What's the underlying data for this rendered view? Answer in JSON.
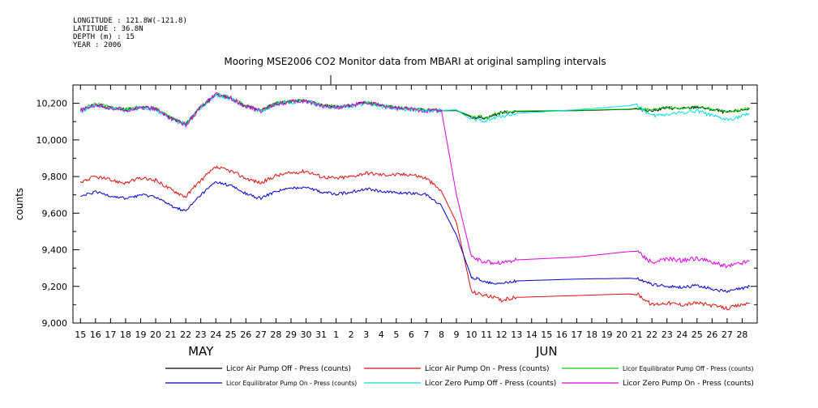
{
  "meta": {
    "longitude": "LONGITUDE : 121.8W(-121.8)",
    "latitude": "LATITUDE : 36.8N",
    "depth": "DEPTH (m) : 15",
    "year": "YEAR : 2006"
  },
  "chart_data": {
    "type": "line",
    "title": "Mooring MSE2006 CO2 Monitor data from MBARI at original sampling intervals",
    "ylabel": "counts",
    "xlabel": "",
    "ylim": [
      9000,
      10300
    ],
    "yticks": [
      9000,
      9200,
      9400,
      9600,
      9800,
      10000,
      10200
    ],
    "xlim": [
      15,
      59.5
    ],
    "x_note": "x values are days counted from May 1 2006 (May 15 = 15, Jun 1 = 32)",
    "x_tick_labels": [
      "15",
      "16",
      "17",
      "18",
      "19",
      "20",
      "21",
      "22",
      "23",
      "24",
      "25",
      "26",
      "27",
      "28",
      "29",
      "30",
      "31",
      "1",
      "2",
      "3",
      "4",
      "5",
      "6",
      "7",
      "8",
      "9",
      "10",
      "11",
      "12",
      "13",
      "14",
      "15",
      "16",
      "17",
      "18",
      "19",
      "20",
      "21",
      "22",
      "23",
      "24",
      "25",
      "26",
      "27",
      "28"
    ],
    "month_labels": [
      {
        "label": "MAY",
        "day": 23
      },
      {
        "label": "JUN",
        "day": 46
      }
    ],
    "grid": false,
    "legend_position": "bottom",
    "series": [
      {
        "name": "Licor Air Pump Off - Press (counts)",
        "color": "#000000",
        "noise": 8,
        "points": [
          [
            15,
            10160
          ],
          [
            16,
            10195
          ],
          [
            17,
            10175
          ],
          [
            18,
            10165
          ],
          [
            19,
            10180
          ],
          [
            20,
            10170
          ],
          [
            21,
            10120
          ],
          [
            22,
            10085
          ],
          [
            23,
            10180
          ],
          [
            24,
            10250
          ],
          [
            25,
            10230
          ],
          [
            26,
            10185
          ],
          [
            27,
            10160
          ],
          [
            28,
            10200
          ],
          [
            29,
            10210
          ],
          [
            30,
            10215
          ],
          [
            31,
            10190
          ],
          [
            32,
            10180
          ],
          [
            33,
            10190
          ],
          [
            34,
            10205
          ],
          [
            35,
            10190
          ],
          [
            36,
            10175
          ],
          [
            37,
            10170
          ],
          [
            38,
            10162
          ],
          [
            39,
            10160
          ],
          [
            40,
            10160
          ],
          [
            41,
            10125
          ],
          [
            42,
            10120
          ],
          [
            43,
            10150
          ],
          [
            44,
            10155
          ],
          [
            48,
            10160
          ],
          [
            52,
            10168
          ],
          [
            53,
            10160
          ],
          [
            54,
            10175
          ],
          [
            55,
            10170
          ],
          [
            56,
            10180
          ],
          [
            57,
            10165
          ],
          [
            58,
            10150
          ],
          [
            59.5,
            10170
          ]
        ]
      },
      {
        "name": "Licor Air Pump On - Press (counts)",
        "color": "#e01010",
        "noise": 10,
        "points": [
          [
            15,
            9770
          ],
          [
            16,
            9800
          ],
          [
            17,
            9780
          ],
          [
            18,
            9765
          ],
          [
            19,
            9790
          ],
          [
            20,
            9780
          ],
          [
            21,
            9730
          ],
          [
            22,
            9690
          ],
          [
            23,
            9780
          ],
          [
            24,
            9850
          ],
          [
            25,
            9830
          ],
          [
            26,
            9790
          ],
          [
            27,
            9765
          ],
          [
            28,
            9805
          ],
          [
            29,
            9820
          ],
          [
            30,
            9830
          ],
          [
            31,
            9800
          ],
          [
            32,
            9790
          ],
          [
            33,
            9800
          ],
          [
            34,
            9820
          ],
          [
            35,
            9810
          ],
          [
            36,
            9810
          ],
          [
            37,
            9812
          ],
          [
            38,
            9790
          ],
          [
            39,
            9720
          ],
          [
            40,
            9550
          ],
          [
            41,
            9170
          ],
          [
            42,
            9150
          ],
          [
            43,
            9125
          ],
          [
            44,
            9140
          ],
          [
            48,
            9150
          ],
          [
            52,
            9160
          ],
          [
            53,
            9100
          ],
          [
            54,
            9110
          ],
          [
            55,
            9100
          ],
          [
            56,
            9110
          ],
          [
            57,
            9095
          ],
          [
            58,
            9080
          ],
          [
            59.5,
            9110
          ]
        ]
      },
      {
        "name": "Licor Equilibrator Pump Off - Press (counts)",
        "color": "#00d000",
        "noise": 8,
        "points": [
          [
            15,
            10165
          ],
          [
            16,
            10198
          ],
          [
            17,
            10178
          ],
          [
            18,
            10168
          ],
          [
            19,
            10182
          ],
          [
            20,
            10172
          ],
          [
            21,
            10122
          ],
          [
            22,
            10088
          ],
          [
            23,
            10182
          ],
          [
            24,
            10252
          ],
          [
            25,
            10232
          ],
          [
            26,
            10188
          ],
          [
            27,
            10162
          ],
          [
            28,
            10202
          ],
          [
            29,
            10212
          ],
          [
            30,
            10217
          ],
          [
            31,
            10192
          ],
          [
            32,
            10182
          ],
          [
            33,
            10192
          ],
          [
            34,
            10207
          ],
          [
            35,
            10192
          ],
          [
            36,
            10177
          ],
          [
            37,
            10172
          ],
          [
            38,
            10164
          ],
          [
            39,
            10162
          ],
          [
            40,
            10162
          ],
          [
            41,
            10130
          ],
          [
            42,
            10125
          ],
          [
            43,
            10152
          ],
          [
            44,
            10158
          ],
          [
            48,
            10162
          ],
          [
            52,
            10170
          ],
          [
            53,
            10165
          ],
          [
            54,
            10178
          ],
          [
            55,
            10172
          ],
          [
            56,
            10182
          ],
          [
            57,
            10168
          ],
          [
            58,
            10155
          ],
          [
            59.5,
            10172
          ]
        ]
      },
      {
        "name": "Licor Equilibrator Pump On - Press (counts)",
        "color": "#0000cc",
        "noise": 8,
        "points": [
          [
            15,
            9690
          ],
          [
            16,
            9715
          ],
          [
            17,
            9695
          ],
          [
            18,
            9680
          ],
          [
            19,
            9700
          ],
          [
            20,
            9690
          ],
          [
            21,
            9640
          ],
          [
            22,
            9610
          ],
          [
            23,
            9700
          ],
          [
            24,
            9770
          ],
          [
            25,
            9750
          ],
          [
            26,
            9705
          ],
          [
            27,
            9680
          ],
          [
            28,
            9720
          ],
          [
            29,
            9735
          ],
          [
            30,
            9745
          ],
          [
            31,
            9715
          ],
          [
            32,
            9705
          ],
          [
            33,
            9715
          ],
          [
            34,
            9735
          ],
          [
            35,
            9720
          ],
          [
            36,
            9710
          ],
          [
            37,
            9710
          ],
          [
            38,
            9700
          ],
          [
            39,
            9640
          ],
          [
            40,
            9480
          ],
          [
            41,
            9250
          ],
          [
            42,
            9225
          ],
          [
            43,
            9215
          ],
          [
            44,
            9230
          ],
          [
            48,
            9240
          ],
          [
            52,
            9245
          ],
          [
            53,
            9210
          ],
          [
            54,
            9200
          ],
          [
            55,
            9195
          ],
          [
            56,
            9205
          ],
          [
            57,
            9185
          ],
          [
            58,
            9170
          ],
          [
            59.5,
            9200
          ]
        ]
      },
      {
        "name": "Licor Zero Pump Off - Press (counts)",
        "color": "#00e0e0",
        "noise": 10,
        "points": [
          [
            15,
            10155
          ],
          [
            16,
            10190
          ],
          [
            17,
            10170
          ],
          [
            18,
            10160
          ],
          [
            19,
            10175
          ],
          [
            20,
            10165
          ],
          [
            21,
            10115
          ],
          [
            22,
            10080
          ],
          [
            23,
            10175
          ],
          [
            24,
            10245
          ],
          [
            25,
            10225
          ],
          [
            26,
            10180
          ],
          [
            27,
            10155
          ],
          [
            28,
            10195
          ],
          [
            29,
            10205
          ],
          [
            30,
            10210
          ],
          [
            31,
            10185
          ],
          [
            32,
            10175
          ],
          [
            33,
            10185
          ],
          [
            34,
            10200
          ],
          [
            35,
            10185
          ],
          [
            36,
            10170
          ],
          [
            37,
            10162
          ],
          [
            38,
            10158
          ],
          [
            39,
            10160
          ],
          [
            40,
            10165
          ],
          [
            41,
            10110
          ],
          [
            42,
            10105
          ],
          [
            43,
            10130
          ],
          [
            44,
            10145
          ],
          [
            48,
            10165
          ],
          [
            52,
            10190
          ],
          [
            53,
            10130
          ],
          [
            54,
            10140
          ],
          [
            55,
            10150
          ],
          [
            56,
            10160
          ],
          [
            57,
            10130
          ],
          [
            58,
            10110
          ],
          [
            59.5,
            10140
          ]
        ]
      },
      {
        "name": "Licor Zero Pump On - Press (counts)",
        "color": "#e000e0",
        "noise": 12,
        "points": [
          [
            15,
            10158
          ],
          [
            16,
            10193
          ],
          [
            17,
            10173
          ],
          [
            18,
            10163
          ],
          [
            19,
            10178
          ],
          [
            20,
            10168
          ],
          [
            21,
            10118
          ],
          [
            22,
            10083
          ],
          [
            23,
            10178
          ],
          [
            24,
            10248
          ],
          [
            25,
            10228
          ],
          [
            26,
            10183
          ],
          [
            27,
            10158
          ],
          [
            28,
            10198
          ],
          [
            29,
            10208
          ],
          [
            30,
            10213
          ],
          [
            31,
            10188
          ],
          [
            32,
            10178
          ],
          [
            33,
            10188
          ],
          [
            34,
            10203
          ],
          [
            35,
            10188
          ],
          [
            36,
            10173
          ],
          [
            37,
            10168
          ],
          [
            38,
            10160
          ],
          [
            39,
            10162
          ],
          [
            40,
            9700
          ],
          [
            41,
            9360
          ],
          [
            42,
            9330
          ],
          [
            43,
            9330
          ],
          [
            44,
            9345
          ],
          [
            48,
            9360
          ],
          [
            52,
            9395
          ],
          [
            53,
            9330
          ],
          [
            54,
            9350
          ],
          [
            55,
            9340
          ],
          [
            56,
            9355
          ],
          [
            57,
            9330
          ],
          [
            58,
            9310
          ],
          [
            59.5,
            9340
          ]
        ]
      }
    ]
  }
}
